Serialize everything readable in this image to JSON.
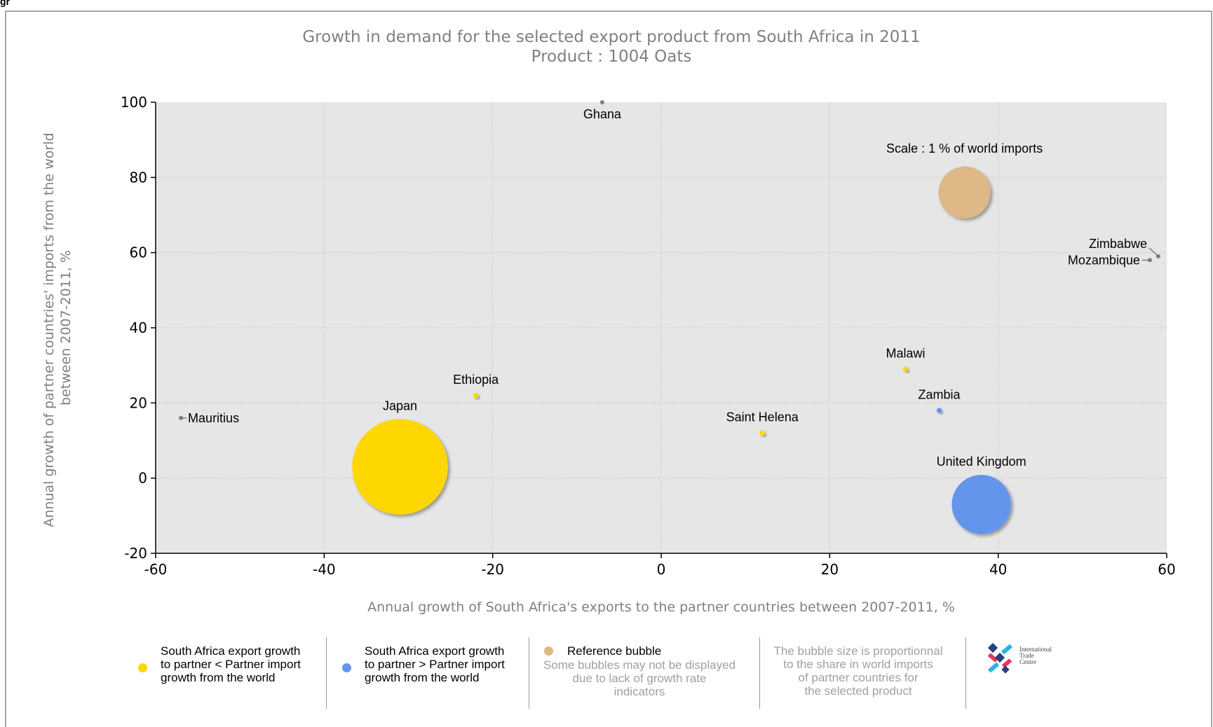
{
  "page": {
    "top_label": "gr"
  },
  "chart_data": {
    "type": "scatter",
    "title": "Growth in demand for the selected export product from South Africa in 2011",
    "subtitle": "Product : 1004 Oats",
    "xlabel": "Annual growth of South Africa's exports to the partner countries between 2007-2011, %",
    "ylabel": "Annual growth of partner countries' imports from the world between 2007-2011, %",
    "xlim": [
      -60,
      60
    ],
    "ylim": [
      -20,
      100
    ],
    "xticks": [
      -60,
      -40,
      -20,
      0,
      20,
      40,
      60
    ],
    "yticks": [
      100,
      80,
      60,
      40,
      20,
      0,
      -20
    ],
    "grid": true,
    "colors": {
      "lower": "#ffd700",
      "higher": "#6495ed",
      "reference": "#deb887",
      "none": "#808080",
      "plot_bg": "#e6e6e6"
    },
    "points": [
      {
        "name": "Ghana",
        "x": -7,
        "y": 100,
        "size": 0,
        "group": "none"
      },
      {
        "name": "Zimbabwe",
        "x": 59,
        "y": 59,
        "size": 0,
        "group": "none"
      },
      {
        "name": "Mozambique",
        "x": 58,
        "y": 58,
        "size": 0,
        "group": "none"
      },
      {
        "name": "Malawi",
        "x": 29,
        "y": 29,
        "size": 0.01,
        "group": "lower"
      },
      {
        "name": "Ethiopia",
        "x": -22,
        "y": 22,
        "size": 0.01,
        "group": "lower"
      },
      {
        "name": "Zambia",
        "x": 33,
        "y": 18,
        "size": 0.01,
        "group": "higher"
      },
      {
        "name": "Mauritius",
        "x": -57,
        "y": 16,
        "size": 0,
        "group": "none"
      },
      {
        "name": "Saint Helena",
        "x": 12,
        "y": 12,
        "size": 0.01,
        "group": "lower"
      },
      {
        "name": "Japan",
        "x": -31,
        "y": 3,
        "size": 3.4,
        "group": "lower"
      },
      {
        "name": "United Kingdom",
        "x": 38,
        "y": -7,
        "size": 1.3,
        "group": "higher"
      }
    ],
    "reference": {
      "label": "Scale : 1 % of world imports",
      "x": 36,
      "y": 76,
      "size": 1
    }
  },
  "legend": {
    "lower": "South Africa export growth\nto partner < Partner import\ngrowth from the world",
    "higher": "South Africa export growth\nto partner > Partner import\ngrowth from the world",
    "reference_title": "Reference bubble",
    "reference_note": "Some bubbles may not be displayed\ndue to lack of growth rate\nindicators",
    "size_note": "The bubble size is proportionnal\nto the share in world imports\nof partner countries for\nthe selected product",
    "logo_text": "International\nTrade\nCentre"
  }
}
